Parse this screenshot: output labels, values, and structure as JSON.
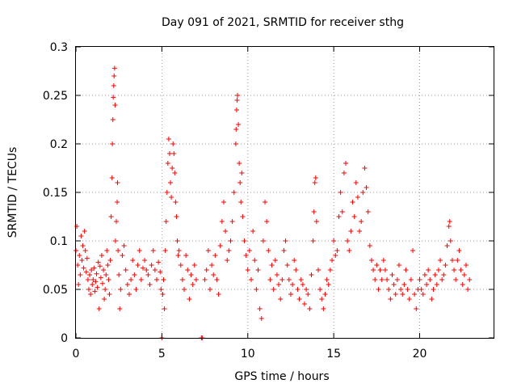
{
  "chart_data": {
    "type": "scatter",
    "title": "Day 091 of 2021, SRMTID for receiver sthg",
    "xlabel": "GPS time / hours",
    "ylabel": "SRMTID / TECUs",
    "xlim": [
      0,
      24.3
    ],
    "ylim": [
      0,
      0.3
    ],
    "x_ticks": [
      0,
      5,
      10,
      15,
      20
    ],
    "y_ticks": [
      0,
      0.05,
      0.1,
      0.15,
      0.2,
      0.25,
      0.3
    ],
    "x_tick_labels": [
      "0",
      "5",
      "10",
      "15",
      "20"
    ],
    "y_tick_labels": [
      "0",
      "0.05",
      "0.1",
      "0.15",
      "0.2",
      "0.25",
      "0.3"
    ],
    "grid": true,
    "marker": "plus",
    "color": "#ff0000",
    "series": [
      {
        "name": "SRMTID",
        "points": [
          [
            0.0,
            0.09
          ],
          [
            0.05,
            0.115
          ],
          [
            0.1,
            0.075
          ],
          [
            0.15,
            0.055
          ],
          [
            0.2,
            0.085
          ],
          [
            0.25,
            0.065
          ],
          [
            0.3,
            0.105
          ],
          [
            0.35,
            0.08
          ],
          [
            0.4,
            0.095
          ],
          [
            0.45,
            0.072
          ],
          [
            0.5,
            0.11
          ],
          [
            0.55,
            0.09
          ],
          [
            0.6,
            0.068
          ],
          [
            0.65,
            0.082
          ],
          [
            0.7,
            0.06
          ],
          [
            0.75,
            0.05
          ],
          [
            0.8,
            0.065
          ],
          [
            0.85,
            0.045
          ],
          [
            0.9,
            0.07
          ],
          [
            0.95,
            0.055
          ],
          [
            1.0,
            0.06
          ],
          [
            1.05,
            0.072
          ],
          [
            1.1,
            0.048
          ],
          [
            1.15,
            0.058
          ],
          [
            1.2,
            0.066
          ],
          [
            1.25,
            0.052
          ],
          [
            1.3,
            0.078
          ],
          [
            1.35,
            0.03
          ],
          [
            1.4,
            0.074
          ],
          [
            1.45,
            0.062
          ],
          [
            1.5,
            0.085
          ],
          [
            1.55,
            0.056
          ],
          [
            1.6,
            0.07
          ],
          [
            1.65,
            0.04
          ],
          [
            1.7,
            0.05
          ],
          [
            1.75,
            0.065
          ],
          [
            1.8,
            0.09
          ],
          [
            1.85,
            0.075
          ],
          [
            1.9,
            0.06
          ],
          [
            1.95,
            0.045
          ],
          [
            2.0,
            0.08
          ],
          [
            2.05,
            0.125
          ],
          [
            2.1,
            0.165
          ],
          [
            2.12,
            0.2
          ],
          [
            2.15,
            0.225
          ],
          [
            2.17,
            0.248
          ],
          [
            2.2,
            0.26
          ],
          [
            2.22,
            0.27
          ],
          [
            2.25,
            0.278
          ],
          [
            2.28,
            0.24
          ],
          [
            2.3,
            0.1
          ],
          [
            2.35,
            0.12
          ],
          [
            2.4,
            0.14
          ],
          [
            2.42,
            0.16
          ],
          [
            2.45,
            0.09
          ],
          [
            2.5,
            0.065
          ],
          [
            2.55,
            0.03
          ],
          [
            2.6,
            0.05
          ],
          [
            2.7,
            0.085
          ],
          [
            2.8,
            0.095
          ],
          [
            2.9,
            0.07
          ],
          [
            3.0,
            0.055
          ],
          [
            3.1,
            0.045
          ],
          [
            3.2,
            0.06
          ],
          [
            3.3,
            0.08
          ],
          [
            3.4,
            0.065
          ],
          [
            3.5,
            0.05
          ],
          [
            3.6,
            0.075
          ],
          [
            3.7,
            0.09
          ],
          [
            3.8,
            0.06
          ],
          [
            3.9,
            0.072
          ],
          [
            4.0,
            0.08
          ],
          [
            4.1,
            0.07
          ],
          [
            4.2,
            0.065
          ],
          [
            4.3,
            0.055
          ],
          [
            4.4,
            0.075
          ],
          [
            4.5,
            0.09
          ],
          [
            4.6,
            0.07
          ],
          [
            4.7,
            0.06
          ],
          [
            4.8,
            0.078
          ],
          [
            4.9,
            0.068
          ],
          [
            4.95,
            0.05
          ],
          [
            5.0,
            0.0
          ],
          [
            5.05,
            0.045
          ],
          [
            5.1,
            0.06
          ],
          [
            5.15,
            0.03
          ],
          [
            5.2,
            0.09
          ],
          [
            5.25,
            0.12
          ],
          [
            5.3,
            0.15
          ],
          [
            5.35,
            0.18
          ],
          [
            5.4,
            0.205
          ],
          [
            5.45,
            0.19
          ],
          [
            5.5,
            0.16
          ],
          [
            5.55,
            0.145
          ],
          [
            5.6,
            0.175
          ],
          [
            5.65,
            0.2
          ],
          [
            5.7,
            0.19
          ],
          [
            5.75,
            0.17
          ],
          [
            5.8,
            0.14
          ],
          [
            5.85,
            0.125
          ],
          [
            5.9,
            0.1
          ],
          [
            5.95,
            0.085
          ],
          [
            6.0,
            0.09
          ],
          [
            6.1,
            0.075
          ],
          [
            6.2,
            0.06
          ],
          [
            6.3,
            0.05
          ],
          [
            6.4,
            0.085
          ],
          [
            6.5,
            0.07
          ],
          [
            6.6,
            0.04
          ],
          [
            6.7,
            0.065
          ],
          [
            6.8,
            0.055
          ],
          [
            6.9,
            0.075
          ],
          [
            7.0,
            0.06
          ],
          [
            7.3,
            0.0
          ],
          [
            7.35,
            0.0
          ],
          [
            7.5,
            0.06
          ],
          [
            7.6,
            0.07
          ],
          [
            7.7,
            0.09
          ],
          [
            7.8,
            0.05
          ],
          [
            7.9,
            0.075
          ],
          [
            8.0,
            0.065
          ],
          [
            8.1,
            0.085
          ],
          [
            8.2,
            0.06
          ],
          [
            8.3,
            0.045
          ],
          [
            8.4,
            0.095
          ],
          [
            8.5,
            0.12
          ],
          [
            8.6,
            0.14
          ],
          [
            8.7,
            0.11
          ],
          [
            8.8,
            0.08
          ],
          [
            8.9,
            0.09
          ],
          [
            9.0,
            0.1
          ],
          [
            9.1,
            0.12
          ],
          [
            9.2,
            0.15
          ],
          [
            9.3,
            0.2
          ],
          [
            9.32,
            0.215
          ],
          [
            9.35,
            0.235
          ],
          [
            9.38,
            0.245
          ],
          [
            9.4,
            0.25
          ],
          [
            9.45,
            0.22
          ],
          [
            9.5,
            0.18
          ],
          [
            9.55,
            0.16
          ],
          [
            9.6,
            0.14
          ],
          [
            9.65,
            0.17
          ],
          [
            9.7,
            0.125
          ],
          [
            9.8,
            0.1
          ],
          [
            9.9,
            0.085
          ],
          [
            10.0,
            0.07
          ],
          [
            10.1,
            0.09
          ],
          [
            10.2,
            0.06
          ],
          [
            10.3,
            0.11
          ],
          [
            10.4,
            0.08
          ],
          [
            10.5,
            0.05
          ],
          [
            10.6,
            0.07
          ],
          [
            10.7,
            0.03
          ],
          [
            10.8,
            0.02
          ],
          [
            10.9,
            0.1
          ],
          [
            11.0,
            0.14
          ],
          [
            11.1,
            0.12
          ],
          [
            11.2,
            0.09
          ],
          [
            11.3,
            0.06
          ],
          [
            11.4,
            0.075
          ],
          [
            11.5,
            0.05
          ],
          [
            11.6,
            0.08
          ],
          [
            11.7,
            0.065
          ],
          [
            11.8,
            0.055
          ],
          [
            11.9,
            0.04
          ],
          [
            12.0,
            0.06
          ],
          [
            12.1,
            0.09
          ],
          [
            12.2,
            0.1
          ],
          [
            12.3,
            0.075
          ],
          [
            12.4,
            0.06
          ],
          [
            12.5,
            0.045
          ],
          [
            12.6,
            0.055
          ],
          [
            12.7,
            0.08
          ],
          [
            12.8,
            0.07
          ],
          [
            12.9,
            0.05
          ],
          [
            13.0,
            0.04
          ],
          [
            13.1,
            0.06
          ],
          [
            13.2,
            0.055
          ],
          [
            13.3,
            0.035
          ],
          [
            13.4,
            0.05
          ],
          [
            13.5,
            0.045
          ],
          [
            13.6,
            0.03
          ],
          [
            13.7,
            0.065
          ],
          [
            13.8,
            0.1
          ],
          [
            13.85,
            0.13
          ],
          [
            13.9,
            0.16
          ],
          [
            13.95,
            0.165
          ],
          [
            14.0,
            0.12
          ],
          [
            14.1,
            0.07
          ],
          [
            14.2,
            0.05
          ],
          [
            14.3,
            0.04
          ],
          [
            14.4,
            0.03
          ],
          [
            14.5,
            0.045
          ],
          [
            14.6,
            0.06
          ],
          [
            14.7,
            0.055
          ],
          [
            14.8,
            0.07
          ],
          [
            14.9,
            0.08
          ],
          [
            15.0,
            0.1
          ],
          [
            15.1,
            0.085
          ],
          [
            15.2,
            0.09
          ],
          [
            15.3,
            0.125
          ],
          [
            15.4,
            0.15
          ],
          [
            15.5,
            0.13
          ],
          [
            15.6,
            0.17
          ],
          [
            15.7,
            0.18
          ],
          [
            15.8,
            0.1
          ],
          [
            15.9,
            0.09
          ],
          [
            16.0,
            0.11
          ],
          [
            16.1,
            0.14
          ],
          [
            16.2,
            0.125
          ],
          [
            16.3,
            0.16
          ],
          [
            16.4,
            0.145
          ],
          [
            16.5,
            0.11
          ],
          [
            16.6,
            0.12
          ],
          [
            16.7,
            0.15
          ],
          [
            16.8,
            0.175
          ],
          [
            16.9,
            0.155
          ],
          [
            17.0,
            0.13
          ],
          [
            17.1,
            0.095
          ],
          [
            17.2,
            0.08
          ],
          [
            17.3,
            0.07
          ],
          [
            17.4,
            0.06
          ],
          [
            17.5,
            0.075
          ],
          [
            17.6,
            0.05
          ],
          [
            17.7,
            0.07
          ],
          [
            17.8,
            0.06
          ],
          [
            17.9,
            0.08
          ],
          [
            18.0,
            0.07
          ],
          [
            18.1,
            0.06
          ],
          [
            18.2,
            0.05
          ],
          [
            18.3,
            0.04
          ],
          [
            18.4,
            0.065
          ],
          [
            18.5,
            0.055
          ],
          [
            18.6,
            0.045
          ],
          [
            18.7,
            0.06
          ],
          [
            18.8,
            0.075
          ],
          [
            18.9,
            0.05
          ],
          [
            19.0,
            0.045
          ],
          [
            19.1,
            0.055
          ],
          [
            19.2,
            0.07
          ],
          [
            19.3,
            0.05
          ],
          [
            19.4,
            0.04
          ],
          [
            19.5,
            0.06
          ],
          [
            19.6,
            0.09
          ],
          [
            19.7,
            0.045
          ],
          [
            19.8,
            0.03
          ],
          [
            19.9,
            0.05
          ],
          [
            20.0,
            0.06
          ],
          [
            20.1,
            0.05
          ],
          [
            20.2,
            0.045
          ],
          [
            20.3,
            0.065
          ],
          [
            20.4,
            0.055
          ],
          [
            20.5,
            0.07
          ],
          [
            20.6,
            0.06
          ],
          [
            20.7,
            0.04
          ],
          [
            20.8,
            0.05
          ],
          [
            20.9,
            0.065
          ],
          [
            21.0,
            0.055
          ],
          [
            21.1,
            0.07
          ],
          [
            21.2,
            0.08
          ],
          [
            21.3,
            0.06
          ],
          [
            21.4,
            0.065
          ],
          [
            21.5,
            0.075
          ],
          [
            21.6,
            0.095
          ],
          [
            21.7,
            0.115
          ],
          [
            21.75,
            0.12
          ],
          [
            21.8,
            0.1
          ],
          [
            21.9,
            0.08
          ],
          [
            22.0,
            0.07
          ],
          [
            22.1,
            0.06
          ],
          [
            22.2,
            0.08
          ],
          [
            22.3,
            0.09
          ],
          [
            22.4,
            0.07
          ],
          [
            22.5,
            0.055
          ],
          [
            22.6,
            0.065
          ],
          [
            22.7,
            0.075
          ],
          [
            22.8,
            0.05
          ],
          [
            22.9,
            0.06
          ]
        ]
      }
    ]
  }
}
